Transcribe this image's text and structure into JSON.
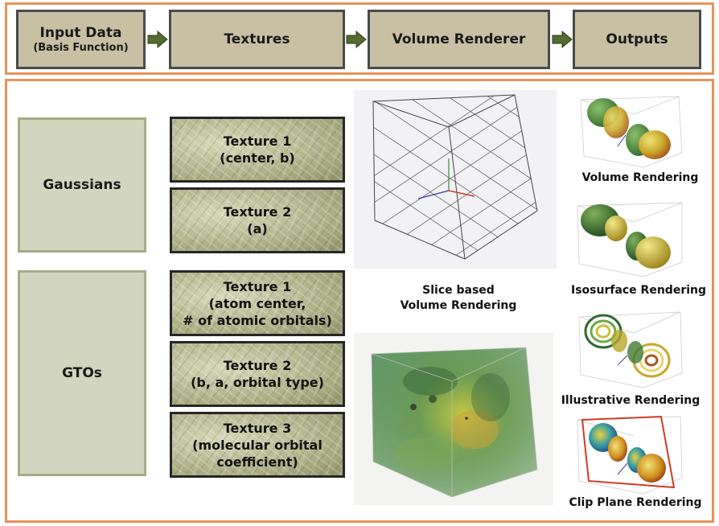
{
  "pipeline": {
    "input": {
      "main": "Input Data",
      "sub": "(Basis Function)"
    },
    "textures": "Textures",
    "renderer": "Volume Renderer",
    "outputs": "Outputs"
  },
  "categories": {
    "gaussians": "Gaussians",
    "gtos": "GTOs"
  },
  "gaussian_textures": [
    {
      "title": "Texture 1",
      "lines": [
        "(center, b)"
      ]
    },
    {
      "title": "Texture 2",
      "lines": [
        "(a)"
      ]
    }
  ],
  "gto_textures": [
    {
      "title": "Texture 1",
      "lines": [
        "(atom center,",
        "# of atomic orbitals)"
      ]
    },
    {
      "title": "Texture 2",
      "lines": [
        "(b, a, orbital type)"
      ]
    },
    {
      "title": "Texture 3",
      "lines": [
        "(molecular orbital",
        "coefficient)"
      ]
    }
  ],
  "renderer_caption": [
    "Slice based",
    "Volume Rendering"
  ],
  "output_captions": {
    "volume": "Volume Rendering",
    "isosurface": "Isosurface Rendering",
    "illustrative": "Illustrative Rendering",
    "clip_plane": "Clip Plane Rendering"
  },
  "colors": {
    "frame": "#e8935a",
    "pipeline_box": "#c9c0a4",
    "arrow": "#556b2f",
    "category_fill": "#d2d6bf",
    "category_border": "#a5ad83"
  }
}
